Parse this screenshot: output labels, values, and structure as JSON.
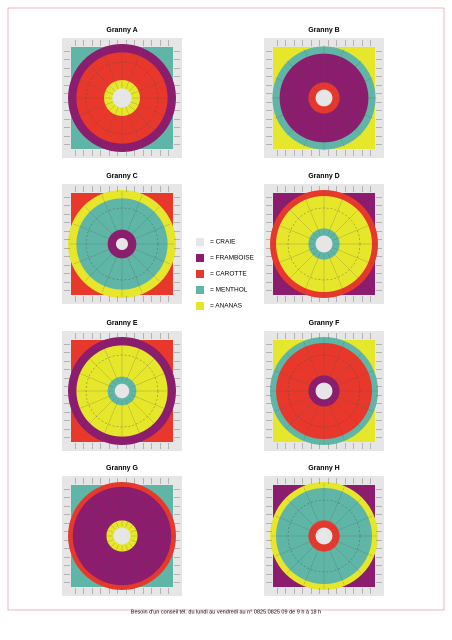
{
  "squares": [
    {
      "title": "Granny A"
    },
    {
      "title": "Granny B"
    },
    {
      "title": "Granny C"
    },
    {
      "title": "Granny D"
    },
    {
      "title": "Granny E"
    },
    {
      "title": "Granny F"
    },
    {
      "title": "Granny G"
    },
    {
      "title": "Granny H"
    }
  ],
  "legend": [
    {
      "label": "= CRAIE",
      "color": "#e6e6e6"
    },
    {
      "label": "= FRAMBOISE",
      "color": "#8c1c6e"
    },
    {
      "label": "= CAROTTE",
      "color": "#e8382c"
    },
    {
      "label": "= MENTHOL",
      "color": "#5fb6a6"
    },
    {
      "label": "= ANANAS",
      "color": "#e6e62a"
    }
  ],
  "footer": "Besoin d'un conseil tél. du lundi au vendredi au n° 0825 0825 09 de 9 h à 18 h"
}
